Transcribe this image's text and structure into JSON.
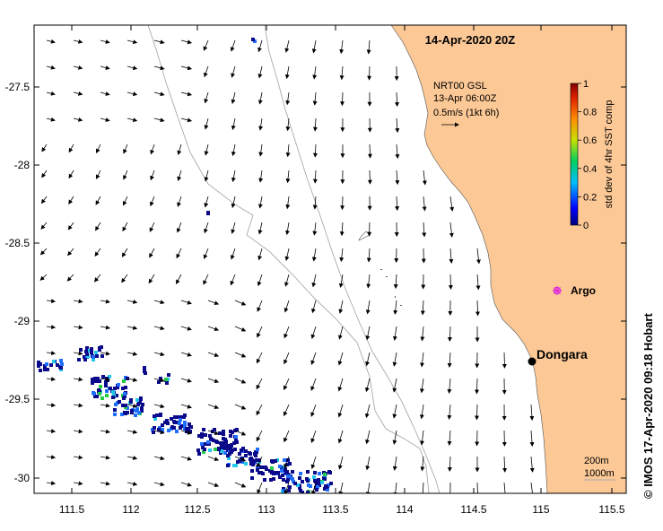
{
  "map": {
    "title": "14-Apr-2020 20Z",
    "lon_ticks": [
      "111.5",
      "112",
      "112.5",
      "113",
      "113.5",
      "114",
      "114.5",
      "115",
      "115.5"
    ],
    "lat_ticks": [
      "-27.5",
      "-28",
      "-28.5",
      "-29",
      "-29.5",
      "-30"
    ],
    "current_legend": {
      "line1": "NRT00 GSL",
      "line2": "13-Apr 06:00Z",
      "line3": "0.5m/s (1kt 6h)"
    },
    "colorbar": {
      "label": "std dev of 4hr SST comp",
      "ticks": [
        "0",
        "0.2",
        "0.4",
        "0.6",
        "0.8",
        "1"
      ]
    },
    "argo_label": "Argo",
    "place_label": "Dongara",
    "depth_legend": {
      "line1": "200m",
      "line2": "1000m"
    },
    "credit": "© IMOS 17-Apr-2020 09:18 Hobart",
    "colors": {
      "land": "#fbc896",
      "argo": "#dd22dd",
      "sst_low": "#000080",
      "sst_mid": "#1e90ff",
      "sst_high": "#22cc22"
    }
  }
}
